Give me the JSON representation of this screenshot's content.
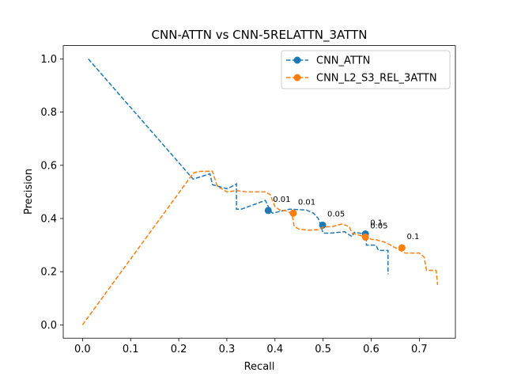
{
  "chart_data": {
    "type": "line",
    "title": "CNN-ATTN vs CNN-5RELATTN_3ATTN",
    "xlabel": "Recall",
    "ylabel": "Precision",
    "xlim": [
      -0.04,
      0.775
    ],
    "ylim": [
      -0.05,
      1.05
    ],
    "xticks": [
      "0.0",
      "0.1",
      "0.2",
      "0.3",
      "0.4",
      "0.5",
      "0.6",
      "0.7"
    ],
    "yticks": [
      "0.0",
      "0.2",
      "0.4",
      "0.6",
      "0.8",
      "1.0"
    ],
    "grid": false,
    "legend_position": "upper right",
    "series": [
      {
        "name": "CNN_ATTN",
        "color": "#1f77b4",
        "style": "dashed",
        "x": [
          0.012,
          0.23,
          0.265,
          0.27,
          0.3,
          0.31,
          0.32,
          0.32,
          0.33,
          0.38,
          0.39,
          0.395,
          0.43,
          0.465,
          0.48,
          0.49,
          0.495,
          0.5,
          0.515,
          0.545,
          0.56,
          0.565,
          0.58,
          0.585,
          0.59,
          0.59,
          0.61,
          0.615,
          0.635,
          0.635
        ],
        "y": [
          1.0,
          0.548,
          0.568,
          0.527,
          0.512,
          0.52,
          0.53,
          0.435,
          0.435,
          0.468,
          0.43,
          0.42,
          0.435,
          0.432,
          0.42,
          0.4,
          0.375,
          0.345,
          0.345,
          0.35,
          0.332,
          0.348,
          0.344,
          0.34,
          0.342,
          0.3,
          0.3,
          0.28,
          0.28,
          0.19
        ],
        "markers": [
          {
            "x": 0.386,
            "y": 0.43,
            "label": "0.01"
          },
          {
            "x": 0.499,
            "y": 0.375,
            "label": "0.05"
          },
          {
            "x": 0.588,
            "y": 0.342,
            "label": "0.1"
          }
        ]
      },
      {
        "name": "CNN_L2_S3_REL_3ATTN",
        "color": "#ff7f0e",
        "style": "dashed",
        "x": [
          0.0,
          0.23,
          0.24,
          0.27,
          0.28,
          0.3,
          0.32,
          0.34,
          0.38,
          0.39,
          0.4,
          0.41,
          0.42,
          0.435,
          0.44,
          0.45,
          0.47,
          0.49,
          0.5,
          0.52,
          0.53,
          0.54,
          0.555,
          0.56,
          0.58,
          0.59,
          0.6,
          0.61,
          0.62,
          0.63,
          0.64,
          0.65,
          0.67,
          0.7,
          0.71,
          0.715,
          0.735,
          0.738
        ],
        "y": [
          0.0,
          0.57,
          0.577,
          0.578,
          0.522,
          0.5,
          0.505,
          0.5,
          0.5,
          0.49,
          0.445,
          0.432,
          0.43,
          0.42,
          0.37,
          0.36,
          0.356,
          0.358,
          0.368,
          0.37,
          0.375,
          0.38,
          0.368,
          0.345,
          0.335,
          0.33,
          0.322,
          0.32,
          0.315,
          0.31,
          0.3,
          0.29,
          0.27,
          0.27,
          0.255,
          0.205,
          0.205,
          0.15
        ],
        "markers": [
          {
            "x": 0.438,
            "y": 0.42,
            "label": "0.01"
          },
          {
            "x": 0.588,
            "y": 0.33,
            "label": "0.05"
          },
          {
            "x": 0.664,
            "y": 0.29,
            "label": "0.1"
          }
        ]
      }
    ]
  }
}
